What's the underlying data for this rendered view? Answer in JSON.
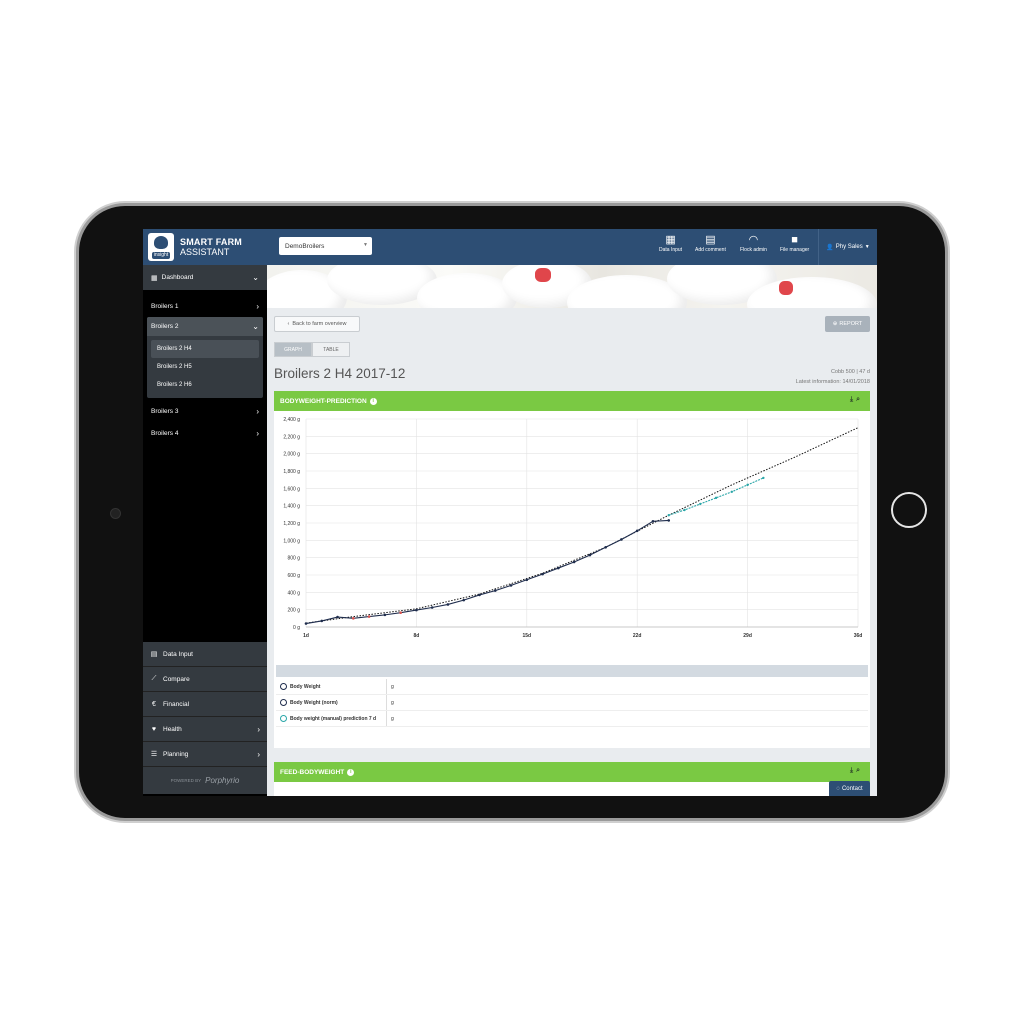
{
  "app": {
    "brand_line1": "SMART FARM",
    "brand_line2": "ASSISTANT",
    "logo_tag": "insight",
    "powered_by": "POWERED BY",
    "powered_name": "Porphyrio"
  },
  "sidebar": {
    "dashboard": "Dashboard",
    "items": [
      {
        "label": "Broilers 1"
      },
      {
        "label": "Broilers 2",
        "children": [
          "Broilers 2 H4",
          "Broilers 2 H5",
          "Broilers 2 H6"
        ]
      },
      {
        "label": "Broilers 3"
      },
      {
        "label": "Broilers 4"
      }
    ],
    "bottom": [
      {
        "label": "Data Input",
        "icon": "table-icon"
      },
      {
        "label": "Compare",
        "icon": "chart-line-icon"
      },
      {
        "label": "Financial",
        "icon": "euro-icon"
      },
      {
        "label": "Health",
        "icon": "heart-icon"
      },
      {
        "label": "Planning",
        "icon": "list-icon"
      }
    ]
  },
  "topbar": {
    "select_value": "DemoBroilers",
    "actions": [
      "Data Input",
      "Add comment",
      "Flock admin",
      "File manager"
    ],
    "user": "Phy Sales"
  },
  "content": {
    "back_label": "Back to farm overview",
    "report_label": "REPORT",
    "tab_graph": "GRAPH",
    "tab_table": "TABLE",
    "title": "Broilers 2 H4 2017-12",
    "meta_line1": "Cobb 500  |  47 d",
    "meta_line2": "Latest information: 14/01/2018",
    "card1_title": "BODYWEIGHT-PREDICTION",
    "card2_title": "FEED-BODYWEIGHT",
    "legend": [
      {
        "name": "Body Weight",
        "value": "g"
      },
      {
        "name": "Body Weight (norm)",
        "value": "g"
      },
      {
        "name": "Body weight (manual) prediction 7 d",
        "value": "g"
      }
    ],
    "contact": "Contact"
  },
  "colors": {
    "header_blue": "#2d4e74",
    "card_green": "#7ac943",
    "series_dark": "#1f2d4d",
    "series_teal": "#2aa6a8",
    "series_red": "#d9534f"
  },
  "chart_data": {
    "type": "line",
    "title": "",
    "xlabel": "",
    "ylabel": "",
    "x_ticks": [
      "1d",
      "8d",
      "15d",
      "22d",
      "29d",
      "36d"
    ],
    "xlim": [
      1,
      36
    ],
    "y_ticks": [
      "0 g",
      "200 g",
      "400 g",
      "600 g",
      "800 g",
      "1,000 g",
      "1,200 g",
      "1,400 g",
      "1,600 g",
      "1,800 g",
      "2,000 g",
      "2,200 g",
      "2,400 g"
    ],
    "ylim": [
      0,
      2400
    ],
    "grid": true,
    "series": [
      {
        "name": "Body Weight",
        "x": [
          1,
          2,
          3,
          4,
          5,
          6,
          7,
          8,
          9,
          10,
          11,
          12,
          13,
          14,
          15,
          16,
          17,
          18,
          19,
          20,
          21,
          22,
          23,
          24
        ],
        "y": [
          40,
          70,
          115,
          100,
          120,
          140,
          165,
          195,
          225,
          260,
          310,
          370,
          420,
          480,
          545,
          610,
          680,
          750,
          830,
          920,
          1010,
          1110,
          1220,
          1230
        ]
      },
      {
        "name": "Body Weight (norm)",
        "x": [
          1,
          4,
          8,
          12,
          16,
          20,
          24,
          28,
          32,
          36
        ],
        "y": [
          45,
          120,
          210,
          380,
          620,
          920,
          1290,
          1640,
          1960,
          2300
        ]
      },
      {
        "name": "Body weight (manual) prediction 7 d",
        "x": [
          24,
          25,
          26,
          27,
          28,
          29,
          30
        ],
        "y": [
          1290,
          1350,
          1420,
          1490,
          1560,
          1640,
          1720
        ]
      }
    ]
  }
}
